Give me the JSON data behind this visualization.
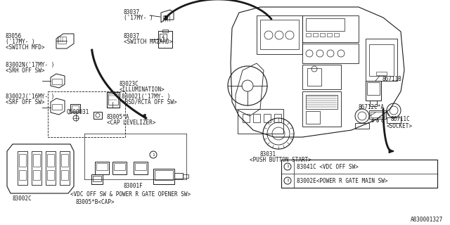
{
  "bg_color": "#ffffff",
  "line_color": "#1a1a1a",
  "fig_width": 6.4,
  "fig_height": 3.2,
  "dpi": 100,
  "footer": "A830001327",
  "legend_items": [
    {
      "num": "1",
      "part": "83041C <VDC OFF SW>"
    },
    {
      "num": "1",
      "part": "83002E<POWER R GATE MAIN SW>"
    }
  ]
}
